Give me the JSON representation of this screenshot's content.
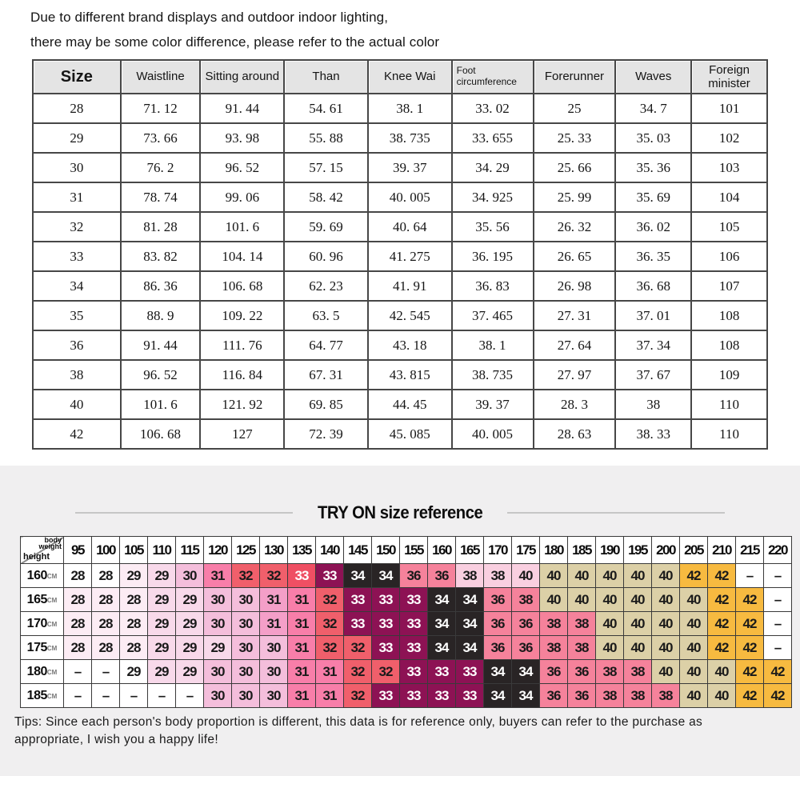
{
  "disclaimer": {
    "line1": "Due to different brand displays and outdoor indoor lighting,",
    "line2": "there may be some color difference, please refer to the actual color"
  },
  "size_chart": {
    "headers": [
      "Size",
      "Waistline",
      "Sitting around",
      "Than",
      "Knee Wai",
      "Foot circumference",
      "Forerunner",
      "Waves",
      "Foreign minister"
    ],
    "rows": [
      [
        "28",
        "71. 12",
        "91. 44",
        "54. 61",
        "38. 1",
        "33. 02",
        "25",
        "34. 7",
        "101"
      ],
      [
        "29",
        "73. 66",
        "93. 98",
        "55. 88",
        "38. 735",
        "33. 655",
        "25. 33",
        "35. 03",
        "102"
      ],
      [
        "30",
        "76. 2",
        "96. 52",
        "57. 15",
        "39. 37",
        "34. 29",
        "25. 66",
        "35. 36",
        "103"
      ],
      [
        "31",
        "78. 74",
        "99. 06",
        "58. 42",
        "40. 005",
        "34. 925",
        "25. 99",
        "35. 69",
        "104"
      ],
      [
        "32",
        "81. 28",
        "101. 6",
        "59. 69",
        "40. 64",
        "35. 56",
        "26. 32",
        "36. 02",
        "105"
      ],
      [
        "33",
        "83. 82",
        "104. 14",
        "60. 96",
        "41. 275",
        "36. 195",
        "26. 65",
        "36. 35",
        "106"
      ],
      [
        "34",
        "86. 36",
        "106. 68",
        "62. 23",
        "41. 91",
        "36. 83",
        "26. 98",
        "36. 68",
        "107"
      ],
      [
        "35",
        "88. 9",
        "109. 22",
        "63. 5",
        "42. 545",
        "37. 465",
        "27. 31",
        "37. 01",
        "108"
      ],
      [
        "36",
        "91. 44",
        "111. 76",
        "64. 77",
        "43. 18",
        "38. 1",
        "27. 64",
        "37. 34",
        "108"
      ],
      [
        "38",
        "96. 52",
        "116. 84",
        "67. 31",
        "43. 815",
        "38. 735",
        "27. 97",
        "37. 67",
        "109"
      ],
      [
        "40",
        "101. 6",
        "121. 92",
        "69. 85",
        "44. 45",
        "39. 37",
        "28. 3",
        "38",
        "110"
      ],
      [
        "42",
        "106. 68",
        "127",
        "72. 39",
        "45. 085",
        "40. 005",
        "28. 63",
        "38. 33",
        "110"
      ]
    ]
  },
  "tryon": {
    "title": "TRY ON size reference",
    "corner": {
      "top_line1": "body",
      "top_line2": "weight",
      "bottom": "height"
    },
    "weights": [
      "95",
      "100",
      "105",
      "110",
      "115",
      "120",
      "125",
      "130",
      "135",
      "140",
      "145",
      "150",
      "155",
      "160",
      "165",
      "170",
      "175",
      "180",
      "185",
      "190",
      "195",
      "200",
      "205",
      "210",
      "215",
      "220"
    ],
    "height_unit": "CM",
    "palette": {
      "w": {
        "bg": "#ffffff",
        "fg": "#1a1a1a"
      },
      "p0": {
        "bg": "#fcecf4",
        "fg": "#1a1a1a"
      },
      "p1": {
        "bg": "#f8d9ea",
        "fg": "#1a1a1a"
      },
      "p2": {
        "bg": "#f4bedb",
        "fg": "#1a1a1a"
      },
      "p3": {
        "bg": "#f49fc8",
        "fg": "#1a1a1a"
      },
      "hp": {
        "bg": "#f87ea9",
        "fg": "#1a1a1a"
      },
      "r": {
        "bg": "#f05f6b",
        "fg": "#1a1a1a"
      },
      "rw": {
        "bg": "#ef4f63",
        "fg": "#ffffff"
      },
      "m": {
        "bg": "#8d1254",
        "fg": "#ffffff"
      },
      "k": {
        "bg": "#292425",
        "fg": "#ffffff"
      },
      "pk": {
        "bg": "#f5829b",
        "fg": "#1a1a1a"
      },
      "lp": {
        "bg": "#f9cfe0",
        "fg": "#1a1a1a"
      },
      "t": {
        "bg": "#dcd0a7",
        "fg": "#1a1a1a"
      },
      "o": {
        "bg": "#f7ba40",
        "fg": "#1a1a1a"
      }
    },
    "rows": [
      {
        "height": "160",
        "values": [
          "28",
          "28",
          "29",
          "29",
          "30",
          "31",
          "32",
          "32",
          "33",
          "33",
          "34",
          "34",
          "36",
          "36",
          "38",
          "38",
          "40",
          "40",
          "40",
          "40",
          "40",
          "40",
          "42",
          "42",
          "–",
          "–"
        ],
        "colors": [
          "w",
          "w",
          "p0",
          "p1",
          "p2",
          "hp",
          "r",
          "r",
          "rw",
          "m",
          "k",
          "k",
          "pk",
          "pk",
          "lp",
          "lp",
          "lp",
          "t",
          "t",
          "t",
          "t",
          "t",
          "o",
          "o",
          "w",
          "w"
        ]
      },
      {
        "height": "165",
        "values": [
          "28",
          "28",
          "28",
          "29",
          "29",
          "30",
          "30",
          "31",
          "31",
          "32",
          "33",
          "33",
          "33",
          "34",
          "34",
          "36",
          "38",
          "40",
          "40",
          "40",
          "40",
          "40",
          "40",
          "42",
          "42",
          "–"
        ],
        "colors": [
          "p0",
          "p0",
          "p0",
          "p1",
          "p1",
          "p2",
          "p2",
          "p3",
          "hp",
          "r",
          "m",
          "m",
          "m",
          "k",
          "k",
          "pk",
          "pk",
          "t",
          "t",
          "t",
          "t",
          "t",
          "t",
          "o",
          "o",
          "w"
        ]
      },
      {
        "height": "170",
        "values": [
          "28",
          "28",
          "28",
          "29",
          "29",
          "30",
          "30",
          "31",
          "31",
          "32",
          "33",
          "33",
          "33",
          "34",
          "34",
          "36",
          "36",
          "38",
          "38",
          "40",
          "40",
          "40",
          "40",
          "42",
          "42",
          "–"
        ],
        "colors": [
          "p0",
          "p0",
          "p0",
          "p1",
          "p1",
          "p2",
          "p2",
          "p3",
          "hp",
          "r",
          "m",
          "m",
          "m",
          "k",
          "k",
          "pk",
          "pk",
          "pk",
          "pk",
          "t",
          "t",
          "t",
          "t",
          "o",
          "o",
          "w"
        ]
      },
      {
        "height": "175",
        "values": [
          "28",
          "28",
          "28",
          "29",
          "29",
          "29",
          "30",
          "30",
          "31",
          "32",
          "32",
          "33",
          "33",
          "34",
          "34",
          "36",
          "36",
          "38",
          "38",
          "40",
          "40",
          "40",
          "40",
          "42",
          "42",
          "–"
        ],
        "colors": [
          "p0",
          "p0",
          "p0",
          "p1",
          "p1",
          "p1",
          "p2",
          "p2",
          "hp",
          "r",
          "r",
          "m",
          "m",
          "k",
          "k",
          "pk",
          "pk",
          "pk",
          "pk",
          "t",
          "t",
          "t",
          "t",
          "o",
          "o",
          "w"
        ]
      },
      {
        "height": "180",
        "values": [
          "–",
          "–",
          "29",
          "29",
          "29",
          "30",
          "30",
          "30",
          "31",
          "31",
          "32",
          "32",
          "33",
          "33",
          "33",
          "34",
          "34",
          "36",
          "36",
          "38",
          "38",
          "40",
          "40",
          "40",
          "42",
          "42"
        ],
        "colors": [
          "w",
          "w",
          "w",
          "p1",
          "p1",
          "p2",
          "p2",
          "p2",
          "hp",
          "hp",
          "r",
          "r",
          "m",
          "m",
          "m",
          "k",
          "k",
          "pk",
          "pk",
          "pk",
          "pk",
          "t",
          "t",
          "t",
          "o",
          "o"
        ]
      },
      {
        "height": "185",
        "values": [
          "–",
          "–",
          "–",
          "–",
          "–",
          "30",
          "30",
          "30",
          "31",
          "31",
          "32",
          "33",
          "33",
          "33",
          "33",
          "34",
          "34",
          "36",
          "36",
          "38",
          "38",
          "38",
          "40",
          "40",
          "42",
          "42"
        ],
        "colors": [
          "w",
          "w",
          "w",
          "w",
          "w",
          "p2",
          "p2",
          "p2",
          "hp",
          "hp",
          "r",
          "m",
          "m",
          "m",
          "m",
          "k",
          "k",
          "pk",
          "pk",
          "pk",
          "pk",
          "pk",
          "t",
          "t",
          "o",
          "o"
        ]
      }
    ]
  },
  "tips": "Tips: Since each person's body proportion is different, this data is for reference only, buyers can refer to the purchase as appropriate, I wish you a happy life!"
}
